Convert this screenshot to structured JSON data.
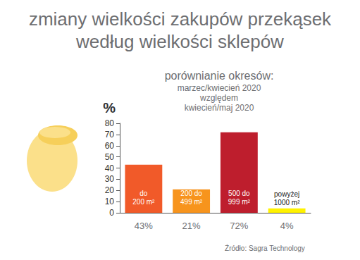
{
  "chart_data": {
    "type": "bar",
    "title": [
      "zmiany wielkości zakupów przekąsek",
      "według wielkości sklepów"
    ],
    "subtitle": [
      "porównianie okresów:",
      "marzec/kwiecień 2020",
      "względem",
      "kwiecień/maj 2020"
    ],
    "ylabel": "%",
    "categories": [
      "do\n200 m²",
      "200 do\n499 m²",
      "500 do\n999 m²",
      "powyżej\n1000 m²"
    ],
    "values": [
      43,
      21,
      72,
      4
    ],
    "value_labels": [
      "43%",
      "21%",
      "72%",
      "4%"
    ],
    "colors": [
      "#f15a29",
      "#f7941d",
      "#be1e2d",
      "#fff200"
    ],
    "ylim": [
      0,
      80
    ],
    "yticks": [
      0,
      10,
      20,
      30,
      40,
      50,
      60,
      70,
      80
    ],
    "grid": false,
    "data_labels": true,
    "source": "Źródło: Sagra Technology"
  }
}
